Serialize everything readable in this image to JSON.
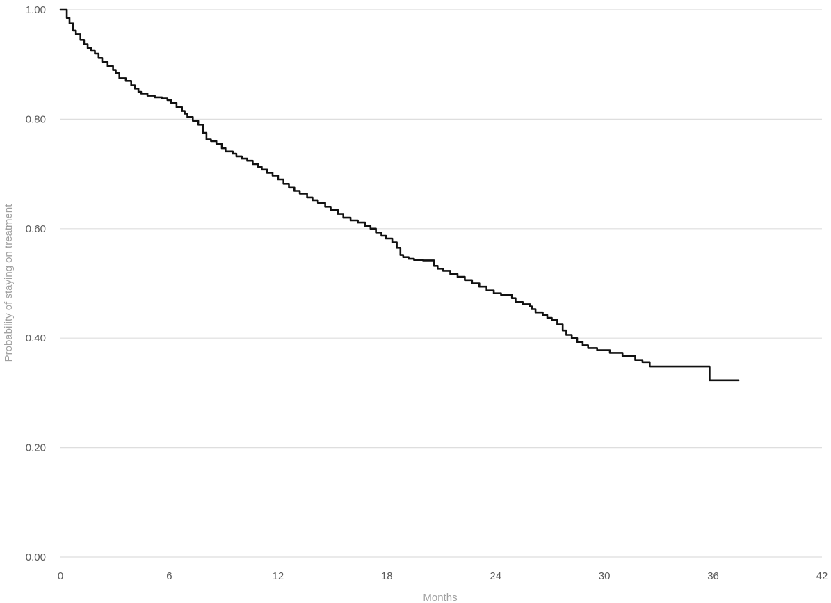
{
  "chart_data": {
    "type": "line",
    "xlabel": "Months",
    "ylabel": "Probability of staying on treatment",
    "xlim": [
      0,
      42
    ],
    "ylim": [
      0,
      1
    ],
    "x_ticks": [
      0,
      6,
      12,
      18,
      24,
      30,
      36,
      42
    ],
    "y_ticks": [
      0,
      0.2,
      0.4,
      0.6,
      0.8,
      1.0
    ],
    "x_tick_labels": [
      "0",
      "6",
      "12",
      "18",
      "24",
      "30",
      "36",
      "42"
    ],
    "y_tick_labels": [
      "0.00",
      "0.20",
      "0.40",
      "0.60",
      "0.80",
      "1.00"
    ],
    "grid": "horizontal",
    "line_color": "#111111",
    "series": [
      {
        "step": true,
        "x": [
          0,
          0.35,
          0.5,
          0.7,
          0.85,
          1.1,
          1.3,
          1.5,
          1.7,
          1.9,
          2.1,
          2.3,
          2.6,
          2.9,
          3.05,
          3.25,
          3.6,
          3.9,
          4.1,
          4.3,
          4.45,
          4.8,
          5.2,
          5.6,
          5.9,
          6.1,
          6.4,
          6.7,
          6.85,
          7.0,
          7.3,
          7.6,
          7.85,
          8.05,
          8.3,
          8.6,
          8.9,
          9.1,
          9.5,
          9.7,
          10.0,
          10.3,
          10.6,
          10.9,
          11.1,
          11.4,
          11.7,
          12.0,
          12.3,
          12.6,
          12.9,
          13.2,
          13.6,
          13.9,
          14.2,
          14.6,
          14.9,
          15.3,
          15.6,
          16.0,
          16.4,
          16.8,
          17.1,
          17.4,
          17.7,
          17.95,
          18.3,
          18.55,
          18.75,
          18.9,
          19.2,
          19.5,
          20.0,
          20.6,
          20.8,
          21.1,
          21.5,
          21.9,
          22.3,
          22.7,
          23.1,
          23.5,
          23.9,
          24.3,
          24.9,
          25.1,
          25.5,
          25.9,
          26.0,
          26.2,
          26.6,
          26.85,
          27.1,
          27.4,
          27.7,
          27.9,
          28.2,
          28.5,
          28.8,
          29.1,
          29.6,
          30.3,
          31.0,
          31.7,
          32.1,
          32.5,
          35.8,
          37.4
        ],
        "values": [
          1.0,
          0.985,
          0.975,
          0.962,
          0.955,
          0.945,
          0.937,
          0.93,
          0.925,
          0.92,
          0.912,
          0.905,
          0.897,
          0.89,
          0.884,
          0.875,
          0.87,
          0.862,
          0.856,
          0.85,
          0.847,
          0.843,
          0.84,
          0.838,
          0.835,
          0.83,
          0.822,
          0.815,
          0.81,
          0.804,
          0.797,
          0.79,
          0.775,
          0.763,
          0.76,
          0.755,
          0.747,
          0.741,
          0.737,
          0.732,
          0.728,
          0.724,
          0.718,
          0.713,
          0.708,
          0.702,
          0.697,
          0.69,
          0.682,
          0.675,
          0.669,
          0.664,
          0.657,
          0.652,
          0.647,
          0.64,
          0.634,
          0.627,
          0.62,
          0.615,
          0.611,
          0.605,
          0.6,
          0.593,
          0.587,
          0.582,
          0.575,
          0.565,
          0.552,
          0.548,
          0.545,
          0.543,
          0.542,
          0.532,
          0.527,
          0.523,
          0.517,
          0.512,
          0.506,
          0.5,
          0.494,
          0.487,
          0.482,
          0.479,
          0.473,
          0.466,
          0.462,
          0.458,
          0.453,
          0.447,
          0.442,
          0.437,
          0.433,
          0.425,
          0.414,
          0.406,
          0.4,
          0.393,
          0.387,
          0.382,
          0.378,
          0.373,
          0.367,
          0.36,
          0.356,
          0.348,
          0.323,
          0.323
        ]
      }
    ]
  }
}
